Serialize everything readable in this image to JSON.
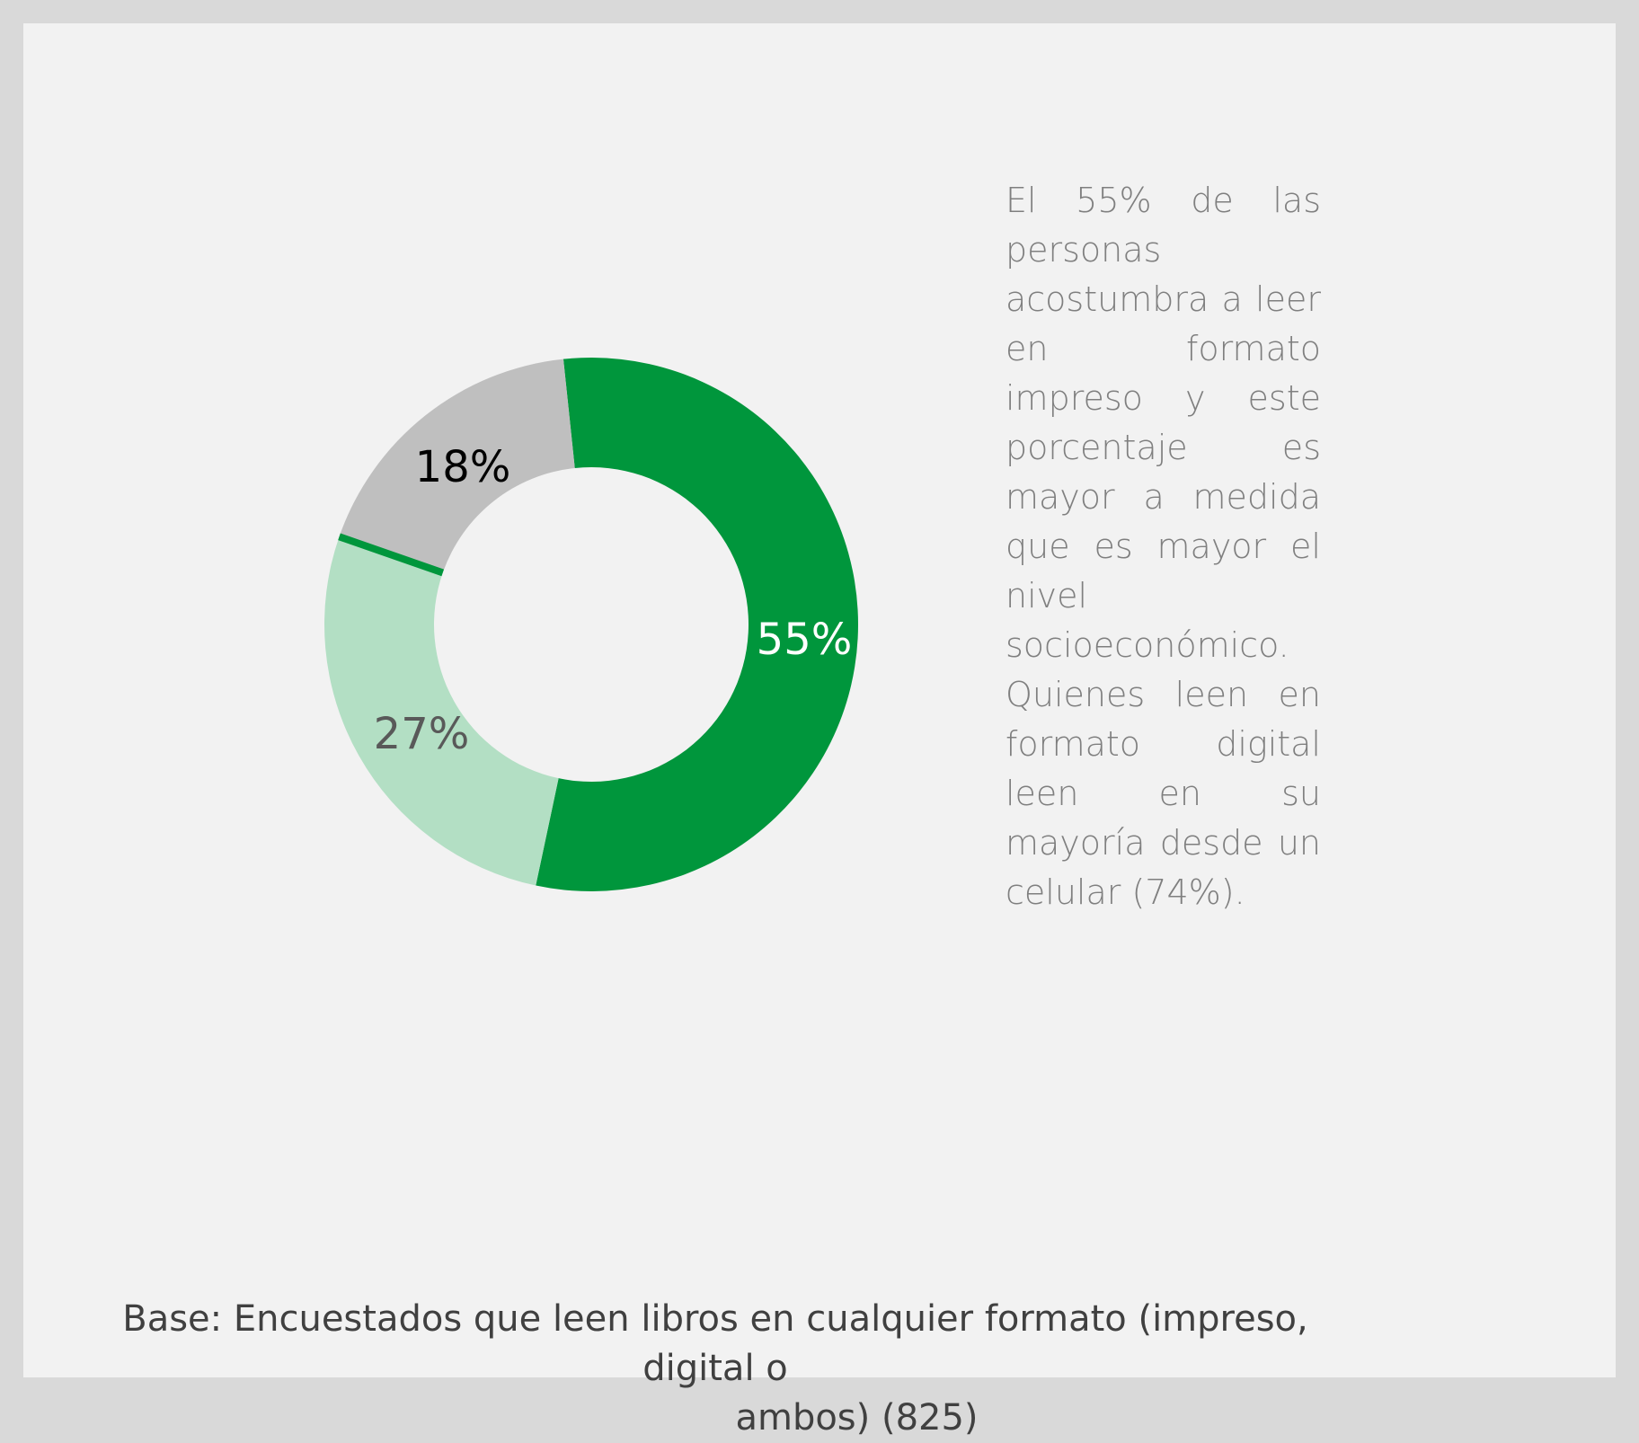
{
  "chart_data": {
    "type": "pie",
    "donut": true,
    "slices": [
      {
        "value": 55,
        "label": "55%",
        "color": "#00963c",
        "label_color": "#ffffff"
      },
      {
        "value": 27,
        "label": "27%",
        "color": "#b3dfc4",
        "label_color": "#595959"
      },
      {
        "value": 18,
        "label": "18%",
        "color": "#bfbfbf",
        "label_color": "#000000"
      }
    ],
    "legend": "none"
  },
  "side_text": "El 55% de las personas acostumbra a leer en formato impreso y este porcentaje es mayor a medida que es mayor el nivel socioeconómico. Quienes leen en formato digital leen en su mayoría desde un celular (74%).",
  "footnote": {
    "line1": "Base: Encuestados que leen libros en cualquier formato (impreso, digital o",
    "line2": "ambos) (825)"
  }
}
